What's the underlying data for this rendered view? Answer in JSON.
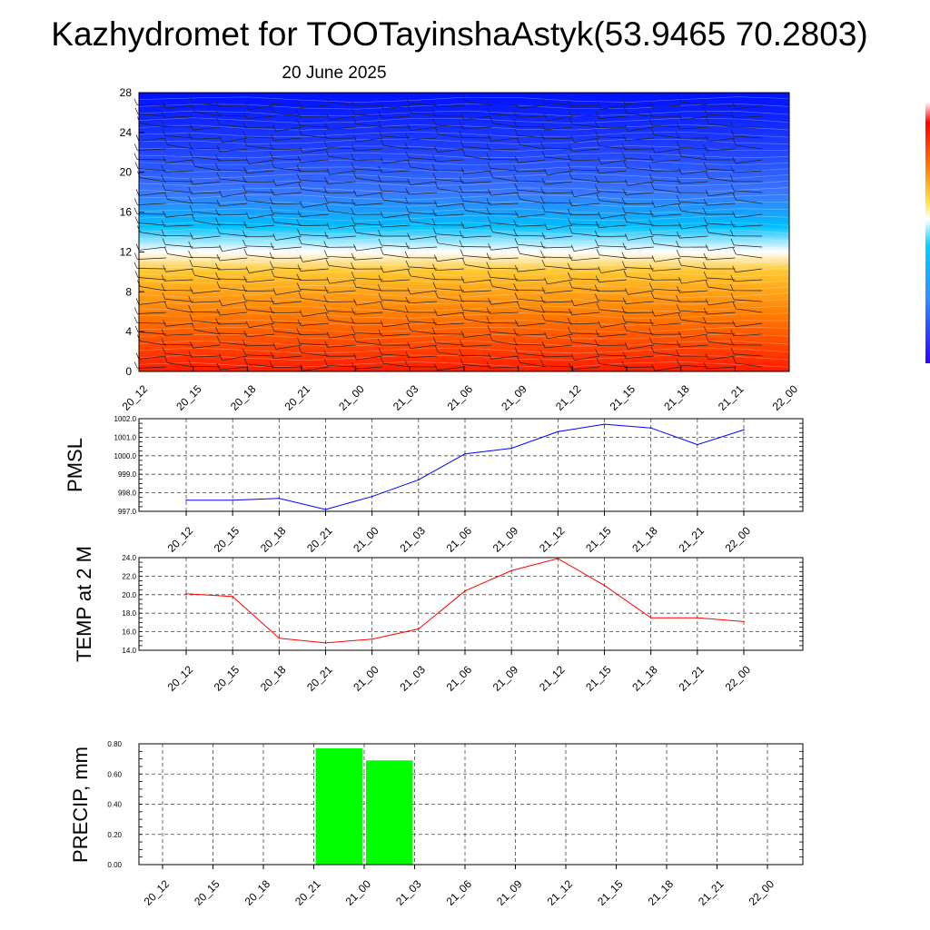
{
  "title": "Kazhydromet for TOOTayinshaAstyk(53.9465 70.2803)",
  "subtitle": "20 June 2025",
  "chart_data": [
    {
      "type": "heatmap",
      "name": "wind-temperature-profile",
      "x_categories": [
        "20_12",
        "20_15",
        "20_18",
        "20_21",
        "21_00",
        "21_03",
        "21_06",
        "21_09",
        "21_12",
        "21_15",
        "21_18",
        "21_21",
        "22_00"
      ],
      "y_ticks": [
        "0",
        "4",
        "8",
        "12",
        "16",
        "20",
        "24",
        "28"
      ],
      "ylim": [
        0,
        28
      ],
      "colorbar": true,
      "colors": [
        "#ff1a00",
        "#ff9a00",
        "#ffd040",
        "#ffffff",
        "#00c8ff",
        "#3060ff",
        "#0010ff"
      ]
    },
    {
      "type": "line",
      "name": "pmsl",
      "ylabel": "PMSL",
      "categories": [
        "20_12",
        "20_15",
        "20_18",
        "20_21",
        "21_00",
        "21_03",
        "21_06",
        "21_09",
        "21_12",
        "21_15",
        "21_18",
        "21_21",
        "22_00"
      ],
      "values": [
        997.6,
        997.6,
        997.7,
        997.1,
        997.8,
        998.7,
        1000.1,
        1000.4,
        1001.3,
        1001.7,
        1001.5,
        1000.6,
        1001.4
      ],
      "ylim": [
        997.0,
        1002.0
      ],
      "y_ticks": [
        "997.0",
        "998.0",
        "999.0",
        "1000.0",
        "1001.0",
        "1002.0"
      ],
      "color": "#0000ff",
      "grid": true
    },
    {
      "type": "line",
      "name": "temp-2m",
      "ylabel": "TEMP at 2 M",
      "categories": [
        "20_12",
        "20_15",
        "20_18",
        "20_21",
        "21_00",
        "21_03",
        "21_06",
        "21_09",
        "21_12",
        "21_15",
        "21_18",
        "21_21",
        "22_00"
      ],
      "values": [
        20.1,
        19.8,
        15.3,
        14.8,
        15.2,
        16.3,
        20.4,
        22.6,
        23.9,
        21.0,
        17.5,
        17.5,
        17.1
      ],
      "ylim": [
        14.0,
        24.0
      ],
      "y_ticks": [
        "14.0",
        "16.0",
        "18.0",
        "20.0",
        "22.0",
        "24.0"
      ],
      "color": "#ff0000",
      "grid": true
    },
    {
      "type": "bar",
      "name": "precip",
      "ylabel": "PRECIP, mm",
      "categories": [
        "20_12",
        "20_15",
        "20_18",
        "20_21",
        "21_00",
        "21_03",
        "21_06",
        "21_09",
        "21_12",
        "21_15",
        "21_18",
        "21_21",
        "22_00"
      ],
      "values": [
        0,
        0,
        0,
        0,
        0.77,
        0.69,
        0,
        0,
        0,
        0,
        0,
        0,
        0
      ],
      "ylim": [
        0,
        0.8
      ],
      "y_ticks": [
        "0.00",
        "0.20",
        "0.40",
        "0.60",
        "0.80"
      ],
      "color": "#00ff00",
      "grid": true
    }
  ]
}
